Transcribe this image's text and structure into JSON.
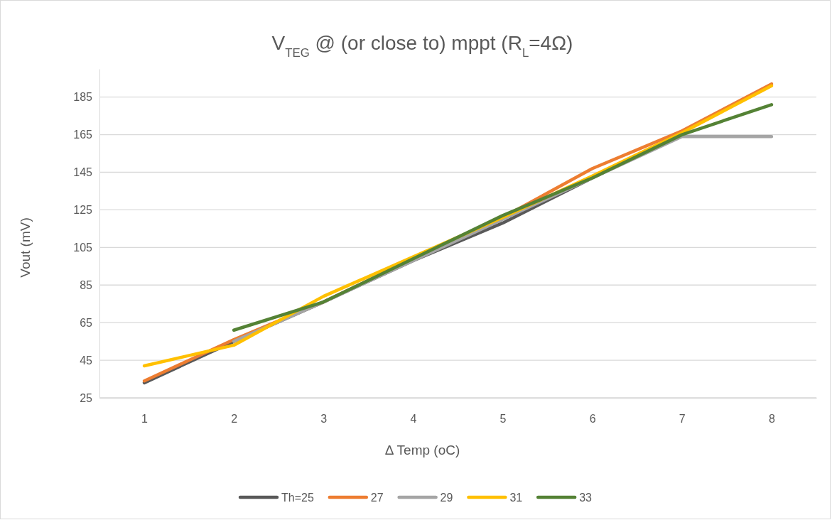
{
  "chart_data": {
    "type": "line",
    "title": "V$_{TEG}$ @ (or close to) mppt (R$_{L}$=4Ω)",
    "xlabel": "Δ Temp (oC)",
    "ylabel": "Vout (mV)",
    "categories": [
      "1",
      "2",
      "3",
      "4",
      "5",
      "6",
      "7",
      "8"
    ],
    "series": [
      {
        "name": "Th=25",
        "color": "#595959",
        "values": [
          33,
          55,
          76,
          98,
          118,
          142,
          165,
          null
        ]
      },
      {
        "name": "27",
        "color": "#ed7d31",
        "values": [
          34,
          56,
          76,
          99,
          121,
          147,
          167,
          192
        ]
      },
      {
        "name": "29",
        "color": "#a5a5a5",
        "values": [
          null,
          55,
          76,
          98,
          120,
          142,
          164,
          164
        ]
      },
      {
        "name": "31",
        "color": "#ffc000",
        "values": [
          42,
          53,
          79,
          100,
          121,
          143,
          166,
          191
        ]
      },
      {
        "name": "33",
        "color": "#548235",
        "values": [
          null,
          61,
          76,
          99,
          122,
          142,
          165,
          181
        ]
      }
    ],
    "ylim": [
      25,
      200
    ],
    "yticks": [
      25,
      45,
      65,
      85,
      105,
      125,
      145,
      165,
      185
    ],
    "grid": "y",
    "legend": "bottom",
    "marker": "none",
    "line_style": "solid"
  }
}
